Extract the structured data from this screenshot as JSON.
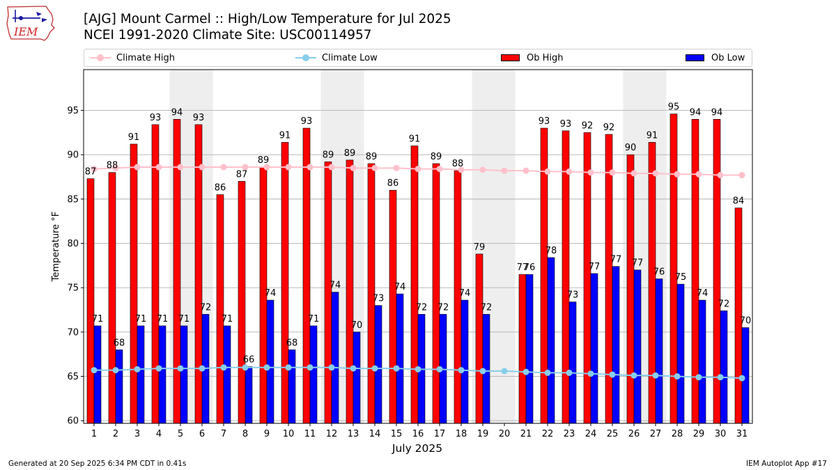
{
  "header": {
    "logo_text": "IEM",
    "title_line1": "[AJG] Mount Carmel :: High/Low Temperature for Jul 2025",
    "title_line2": "NCEI 1991-2020 Climate Site: USC00114957"
  },
  "legend": {
    "climate_high": "Climate High",
    "climate_low": "Climate Low",
    "ob_high": "Ob High",
    "ob_low": "Ob Low"
  },
  "footer": {
    "left": "Generated at 20 Sep 2025 6:34 PM CDT in 0.41s",
    "right": "IEM Autoplot App #17"
  },
  "colors": {
    "ob_high": "#ff0000",
    "ob_low": "#0000ff",
    "climate_high": "#ffc0cb",
    "climate_low": "#87ceeb",
    "weekend_band": "#eeeeee",
    "grid": "#b0b0b0"
  },
  "chart_data": {
    "type": "bar",
    "xlabel": "July 2025",
    "ylabel": "Temperature °F",
    "ylim": [
      59.7,
      99.6
    ],
    "yticks": [
      60,
      65,
      70,
      75,
      80,
      85,
      90,
      95
    ],
    "grid": "horizontal",
    "legend_position": "top",
    "categories": [
      "1",
      "2",
      "3",
      "4",
      "5",
      "6",
      "7",
      "8",
      "9",
      "10",
      "11",
      "12",
      "13",
      "14",
      "15",
      "16",
      "17",
      "18",
      "19",
      "20",
      "21",
      "22",
      "23",
      "24",
      "25",
      "26",
      "27",
      "28",
      "29",
      "30",
      "31"
    ],
    "shaded_days": [
      5,
      6,
      12,
      13,
      19,
      20,
      26,
      27
    ],
    "series": [
      {
        "name": "Ob High",
        "kind": "bar",
        "values": [
          87.3,
          88.0,
          91.2,
          93.4,
          94.0,
          93.4,
          85.5,
          87.0,
          88.6,
          91.4,
          93.0,
          89.2,
          89.4,
          89.0,
          86.0,
          91.0,
          89.0,
          88.2,
          78.8,
          null,
          76.5,
          93.0,
          92.7,
          92.5,
          92.3,
          90.0,
          91.4,
          94.6,
          94.0,
          94.0,
          84.0
        ],
        "labels": [
          "87",
          "88",
          "91",
          "93",
          "94",
          "93",
          "86",
          "87",
          "89",
          "91",
          "93",
          "89",
          "89",
          "89",
          "86",
          "91",
          "89",
          "88",
          "79",
          "",
          "77",
          "93",
          "93",
          "92",
          "92",
          "90",
          "91",
          "95",
          "94",
          "94",
          "84"
        ]
      },
      {
        "name": "Ob Low",
        "kind": "bar",
        "values": [
          70.7,
          68.0,
          70.7,
          70.7,
          70.7,
          72.0,
          70.7,
          66.1,
          73.6,
          68.0,
          70.7,
          74.5,
          70.0,
          73.0,
          74.3,
          72.0,
          72.0,
          73.6,
          72.0,
          null,
          76.5,
          78.4,
          73.4,
          76.6,
          77.4,
          77.0,
          76.0,
          75.4,
          73.6,
          72.4,
          70.5
        ],
        "labels": [
          "71",
          "68",
          "71",
          "71",
          "71",
          "72",
          "71",
          "66",
          "74",
          "68",
          "71",
          "74",
          "70",
          "73",
          "74",
          "72",
          "72",
          "74",
          "72",
          "",
          "76",
          "78",
          "73",
          "77",
          "77",
          "77",
          "76",
          "75",
          "74",
          "72",
          "70"
        ]
      },
      {
        "name": "Climate High",
        "kind": "line",
        "values": [
          88.4,
          88.5,
          88.6,
          88.6,
          88.6,
          88.6,
          88.6,
          88.6,
          88.6,
          88.6,
          88.6,
          88.6,
          88.5,
          88.5,
          88.5,
          88.4,
          88.4,
          88.3,
          88.3,
          88.2,
          88.2,
          88.1,
          88.1,
          88.0,
          88.0,
          87.9,
          87.9,
          87.8,
          87.8,
          87.7,
          87.7
        ]
      },
      {
        "name": "Climate Low",
        "kind": "line",
        "values": [
          65.7,
          65.7,
          65.8,
          65.9,
          65.9,
          65.9,
          66.0,
          66.0,
          66.0,
          66.0,
          66.0,
          66.0,
          65.9,
          65.9,
          65.9,
          65.8,
          65.8,
          65.7,
          65.6,
          65.6,
          65.5,
          65.4,
          65.4,
          65.3,
          65.2,
          65.1,
          65.1,
          65.0,
          64.9,
          64.9,
          64.8
        ]
      }
    ]
  }
}
